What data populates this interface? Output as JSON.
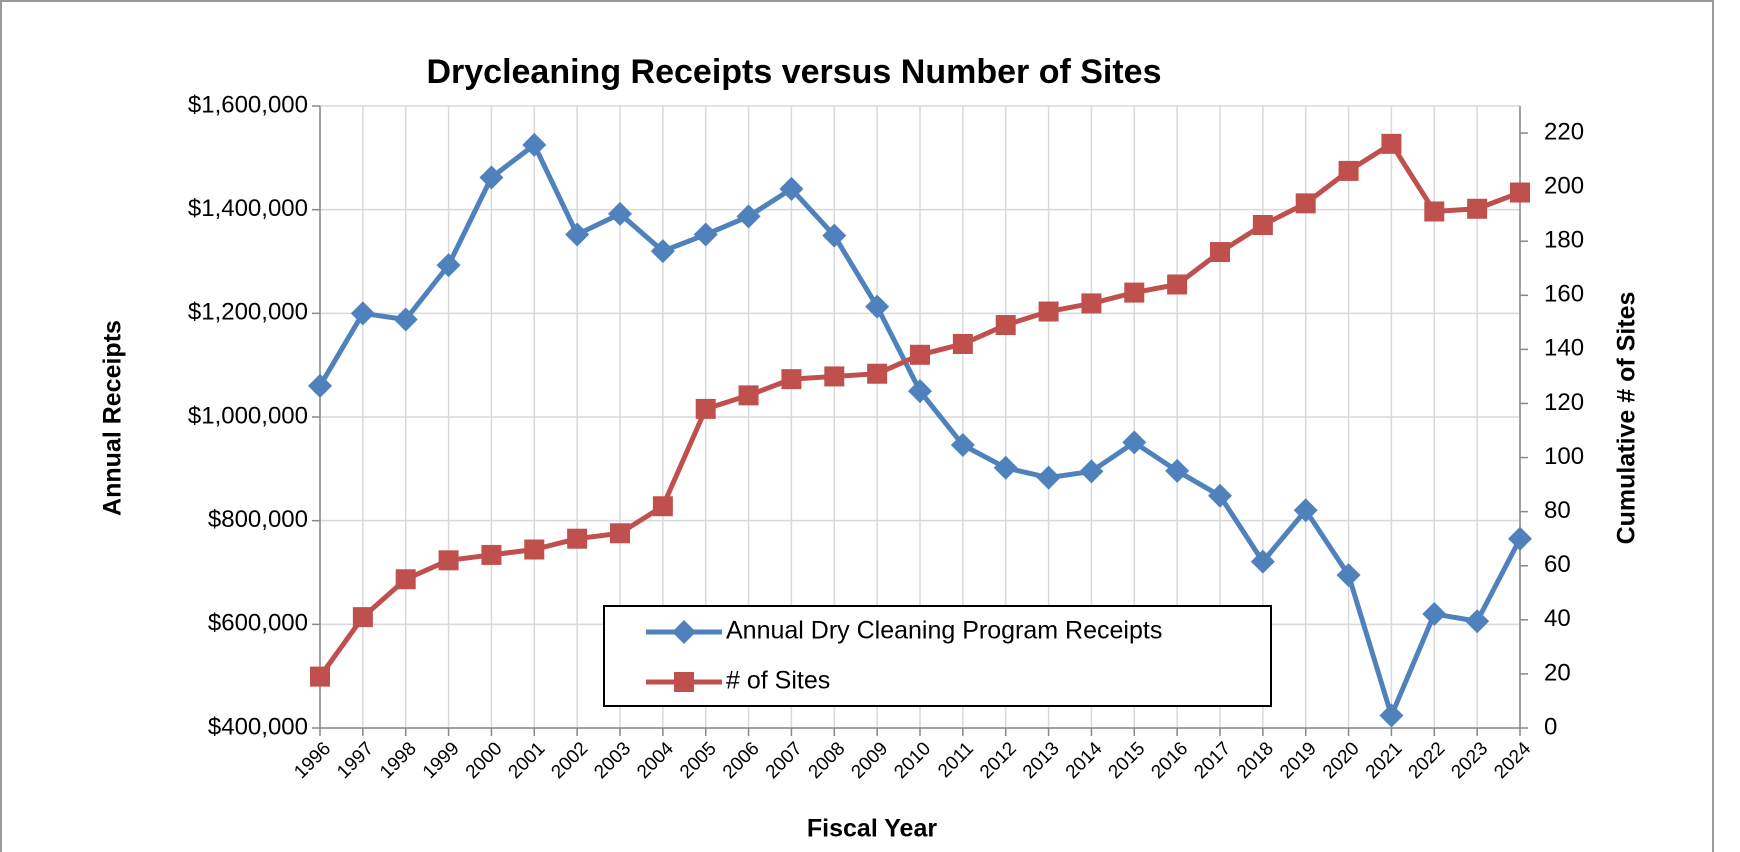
{
  "chart_data": {
    "type": "line",
    "title": "Drycleaning Receipts versus Number of Sites",
    "x_label": "Fiscal Year",
    "y_label": "Annual Receipts",
    "y2_label": "Cumulative # of Sites",
    "categories": [
      "1996",
      "1997",
      "1998",
      "1999",
      "2000",
      "2001",
      "2002",
      "2003",
      "2004",
      "2005",
      "2006",
      "2007",
      "2008",
      "2009",
      "2010",
      "2011",
      "2012",
      "2013",
      "2014",
      "2015",
      "2016",
      "2017",
      "2018",
      "2019",
      "2020",
      "2021",
      "2022",
      "2023",
      "2024"
    ],
    "series": [
      {
        "name": "Annual Dry Cleaning Program Receipts",
        "color": "#4f81bd",
        "marker": "diamond",
        "values": [
          1060000,
          1200000,
          1188000,
          1293000,
          1462000,
          1525000,
          1352000,
          1392000,
          1320000,
          1352000,
          1387000,
          1440000,
          1350000,
          1213000,
          1050000,
          946000,
          902000,
          883000,
          895000,
          951000,
          896000,
          848000,
          721000,
          820000,
          695000,
          424000,
          620000,
          606000,
          765000
        ]
      },
      {
        "name": "# of Sites",
        "color": "#c0504d",
        "marker": "square",
        "axis": "y2",
        "values": [
          19,
          41,
          55,
          62,
          64,
          66,
          70,
          72,
          82,
          118,
          123,
          129,
          130,
          131,
          138,
          142,
          149,
          154,
          157,
          161,
          164,
          176,
          186,
          194,
          206,
          216,
          191,
          192,
          198
        ]
      }
    ],
    "ylim": [
      400000,
      1600000
    ],
    "yticks": [
      {
        "value": 400000,
        "label": "$400,000"
      },
      {
        "value": 600000,
        "label": "$600,000"
      },
      {
        "value": 800000,
        "label": "$800,000"
      },
      {
        "value": 1000000,
        "label": "$1,000,000"
      },
      {
        "value": 1200000,
        "label": "$1,200,000"
      },
      {
        "value": 1400000,
        "label": "$1,400,000"
      },
      {
        "value": 1600000,
        "label": "$1,600,000"
      }
    ],
    "y2lim": [
      0,
      230
    ],
    "y2ticks": [
      0,
      20,
      40,
      60,
      80,
      100,
      120,
      140,
      160,
      180,
      200,
      220
    ],
    "grid": true
  }
}
